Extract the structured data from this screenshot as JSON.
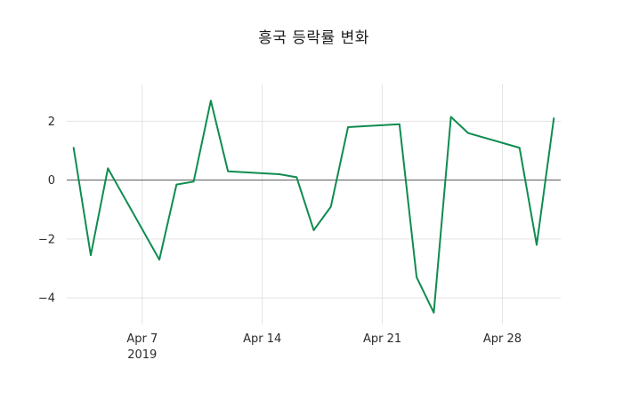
{
  "title": "흥국 등락률 변화",
  "chart_data": {
    "type": "line",
    "title": "흥국 등락률 변화",
    "series_name": "등락률",
    "x_dates": [
      "2019-04-03",
      "2019-04-04",
      "2019-04-05",
      "2019-04-08",
      "2019-04-09",
      "2019-04-10",
      "2019-04-11",
      "2019-04-12",
      "2019-04-15",
      "2019-04-16",
      "2019-04-17",
      "2019-04-18",
      "2019-04-19",
      "2019-04-22",
      "2019-04-23",
      "2019-04-24",
      "2019-04-25",
      "2019-04-26",
      "2019-04-29",
      "2019-04-30",
      "2019-05-01"
    ],
    "x_days": [
      3,
      4,
      5,
      8,
      9,
      10,
      11,
      12,
      15,
      16,
      17,
      18,
      19,
      22,
      23,
      24,
      25,
      26,
      29,
      30,
      31
    ],
    "values": [
      1.1,
      -2.55,
      0.4,
      -2.7,
      -0.15,
      -0.05,
      2.7,
      0.3,
      0.2,
      0.1,
      -1.7,
      -0.9,
      1.8,
      1.9,
      -3.3,
      -4.5,
      2.15,
      1.6,
      1.1,
      -2.2,
      2.1
    ],
    "x_tick_labels": [
      {
        "day": 7,
        "label": "Apr 7",
        "sub": "2019"
      },
      {
        "day": 14,
        "label": "Apr 14",
        "sub": ""
      },
      {
        "day": 21,
        "label": "Apr 21",
        "sub": ""
      },
      {
        "day": 28,
        "label": "Apr 28",
        "sub": ""
      }
    ],
    "y_ticks": [
      2,
      0,
      -2,
      -4
    ],
    "x_domain_days": [
      2.6,
      31.4
    ],
    "y_domain": [
      -4.9,
      3.25
    ],
    "line_color": "#0f8c4f",
    "zero_line_color": "#555555",
    "grid_color": "#e3e3e3",
    "tick_label_color": "#2b2b2b",
    "background": "#ffffff",
    "grid": true,
    "legend": "none"
  }
}
